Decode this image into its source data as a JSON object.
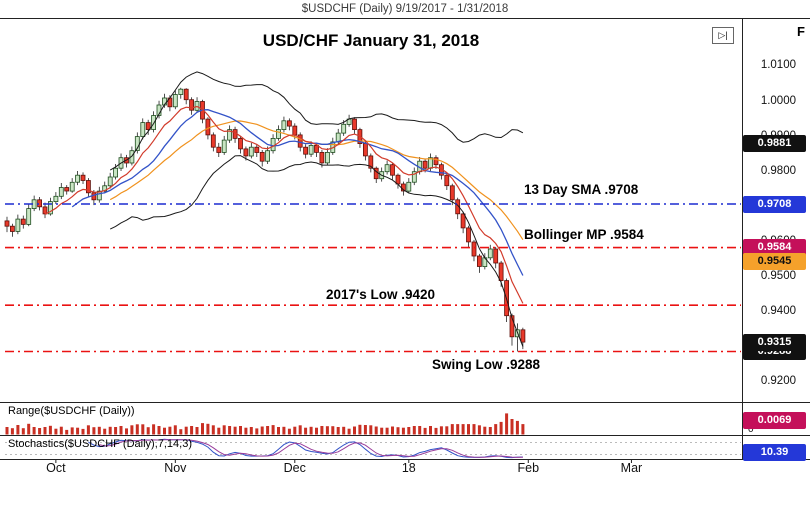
{
  "header": {
    "title": "$USDCHF (Daily) 9/19/2017 - 1/31/2018"
  },
  "toolbar": {
    "scroll_end_glyph": "▷|",
    "corner_letter": "F"
  },
  "panels": {
    "range": {
      "label": "Range($USDCHF (Daily))",
      "badge": "0.0069",
      "badge_bg": "#c4105a",
      "badge_fg": "#ffffff",
      "zero_label": "0"
    },
    "stochastics": {
      "label": "Stochastics($USDCHF (Daily),7,14,3)",
      "badge": "10.39",
      "badge_bg": "#2438d8",
      "badge_fg": "#ffffff",
      "last": 10.39
    }
  },
  "chart_data": {
    "type": "candlestick",
    "symbol": "$USDCHF",
    "timeframe": "Daily",
    "date_range": "9/19/2017 - 1/31/2018",
    "title": "USD/CHF January 31, 2018",
    "ylim": [
      0.915,
      1.0215
    ],
    "y_ticks": [
      "1.0100",
      "1.0000",
      "0.9900",
      "0.9800",
      "0.9700",
      "0.9600",
      "0.9500",
      "0.9400",
      "0.9300",
      "0.9200"
    ],
    "x_ticks": [
      {
        "label": "Oct",
        "day": 9
      },
      {
        "label": "Nov",
        "day": 31
      },
      {
        "label": "Dec",
        "day": 53
      },
      {
        "label": "18",
        "day": 74
      },
      {
        "label": "Feb",
        "day": 96
      },
      {
        "label": "Mar",
        "day": 115
      }
    ],
    "levels": [
      {
        "label": "13 Day SMA .9708",
        "value": 0.9708,
        "color": "#1c2bd0"
      },
      {
        "label": "Bollinger MP .9584",
        "value": 0.9584,
        "color": "#ea1212"
      },
      {
        "label": "2017's Low .9420",
        "value": 0.942,
        "color": "#ea1212"
      },
      {
        "label": "Swing Low .9288",
        "value": 0.9288,
        "color": "#ea1212"
      }
    ],
    "price_badges": [
      {
        "text": "0.9881",
        "value": 0.9881,
        "bg": "#111111",
        "fg": "#ffffff"
      },
      {
        "text": "0.9288",
        "value": 0.9288,
        "bg": "#111111",
        "fg": "#ffffff"
      },
      {
        "text": "0.9315",
        "value": 0.9315,
        "bg": "#111111",
        "fg": "#ffffff"
      },
      {
        "text": "0.9708",
        "value": 0.9708,
        "bg": "#2438d8",
        "fg": "#ffffff"
      },
      {
        "text": "0.9584",
        "value": 0.9584,
        "bg": "#c4105a",
        "fg": "#ffffff"
      },
      {
        "text": "0.9545",
        "value": 0.9545,
        "bg": "#f5a12b",
        "fg": "#111111"
      }
    ],
    "overlays": [
      {
        "name": "Bollinger Upper Band",
        "period": 20,
        "color": "#1a1a1a"
      },
      {
        "name": "Bollinger Lower Band",
        "period": 20,
        "color": "#1a1a1a"
      },
      {
        "name": "Bollinger Midline",
        "period": 20,
        "color": "#f0921e"
      },
      {
        "name": "13 Day SMA",
        "period": 13,
        "color": "#3353c8"
      },
      {
        "name": "8 Day EMA",
        "period": 8,
        "color": "#d23b2b"
      }
    ],
    "last_close": 0.9315,
    "candles": [
      [
        0.966,
        0.9672,
        0.9628,
        0.9645
      ],
      [
        0.9645,
        0.9652,
        0.9615,
        0.963
      ],
      [
        0.963,
        0.9678,
        0.9622,
        0.9665
      ],
      [
        0.9665,
        0.9675,
        0.9638,
        0.965
      ],
      [
        0.965,
        0.9708,
        0.9645,
        0.9695
      ],
      [
        0.9695,
        0.9732,
        0.9688,
        0.972
      ],
      [
        0.972,
        0.9728,
        0.969,
        0.97
      ],
      [
        0.97,
        0.9712,
        0.9668,
        0.968
      ],
      [
        0.968,
        0.9726,
        0.9675,
        0.9715
      ],
      [
        0.9715,
        0.9742,
        0.9708,
        0.973
      ],
      [
        0.973,
        0.9768,
        0.9722,
        0.9755
      ],
      [
        0.9755,
        0.9762,
        0.9735,
        0.9745
      ],
      [
        0.9745,
        0.9782,
        0.974,
        0.977
      ],
      [
        0.977,
        0.9802,
        0.9762,
        0.979
      ],
      [
        0.979,
        0.9798,
        0.9765,
        0.9775
      ],
      [
        0.9775,
        0.9782,
        0.9728,
        0.974
      ],
      [
        0.974,
        0.9748,
        0.9705,
        0.972
      ],
      [
        0.972,
        0.9757,
        0.9712,
        0.9745
      ],
      [
        0.9745,
        0.9772,
        0.9738,
        0.976
      ],
      [
        0.976,
        0.9797,
        0.9752,
        0.9785
      ],
      [
        0.9785,
        0.9822,
        0.9778,
        0.981
      ],
      [
        0.981,
        0.9852,
        0.9802,
        0.984
      ],
      [
        0.984,
        0.9848,
        0.9812,
        0.9825
      ],
      [
        0.9825,
        0.9872,
        0.9818,
        0.986
      ],
      [
        0.986,
        0.9912,
        0.9852,
        0.99
      ],
      [
        0.99,
        0.9952,
        0.9892,
        0.994
      ],
      [
        0.994,
        0.9948,
        0.9905,
        0.992
      ],
      [
        0.992,
        0.9972,
        0.9912,
        0.996
      ],
      [
        0.996,
        1.0002,
        0.9952,
        0.999
      ],
      [
        0.999,
        1.0022,
        0.9982,
        1.001
      ],
      [
        1.001,
        1.0018,
        0.9972,
        0.9985
      ],
      [
        0.9985,
        1.0032,
        0.9978,
        1.002
      ],
      [
        1.002,
        1.0039,
        1.0008,
        1.0035
      ],
      [
        1.0035,
        1.0038,
        0.9992,
        1.0005
      ],
      [
        1.0005,
        1.0012,
        0.9962,
        0.9975
      ],
      [
        0.9975,
        1.0012,
        0.9968,
        1.0
      ],
      [
        1.0,
        1.0005,
        0.9938,
        0.995
      ],
      [
        0.995,
        0.9955,
        0.9892,
        0.9905
      ],
      [
        0.9905,
        0.9912,
        0.9858,
        0.987
      ],
      [
        0.987,
        0.9882,
        0.9842,
        0.9855
      ],
      [
        0.9855,
        0.9902,
        0.9848,
        0.989
      ],
      [
        0.989,
        0.9932,
        0.9882,
        0.992
      ],
      [
        0.992,
        0.9928,
        0.9882,
        0.9895
      ],
      [
        0.9895,
        0.9902,
        0.9852,
        0.9865
      ],
      [
        0.9865,
        0.9872,
        0.9832,
        0.9845
      ],
      [
        0.9845,
        0.9882,
        0.9838,
        0.987
      ],
      [
        0.987,
        0.9878,
        0.9842,
        0.9855
      ],
      [
        0.9855,
        0.9862,
        0.9815,
        0.983
      ],
      [
        0.983,
        0.9872,
        0.9822,
        0.986
      ],
      [
        0.986,
        0.9907,
        0.9852,
        0.9895
      ],
      [
        0.9895,
        0.9932,
        0.9888,
        0.992
      ],
      [
        0.992,
        0.9957,
        0.9912,
        0.9945
      ],
      [
        0.9945,
        0.9952,
        0.9918,
        0.993
      ],
      [
        0.993,
        0.9938,
        0.9892,
        0.9905
      ],
      [
        0.9905,
        0.9912,
        0.9858,
        0.987
      ],
      [
        0.987,
        0.9878,
        0.9838,
        0.985
      ],
      [
        0.985,
        0.9887,
        0.9842,
        0.9875
      ],
      [
        0.9875,
        0.9882,
        0.9842,
        0.9855
      ],
      [
        0.9855,
        0.9862,
        0.9812,
        0.9825
      ],
      [
        0.9825,
        0.9867,
        0.9818,
        0.9855
      ],
      [
        0.9855,
        0.9897,
        0.9848,
        0.9885
      ],
      [
        0.9885,
        0.9922,
        0.9878,
        0.991
      ],
      [
        0.991,
        0.9947,
        0.9902,
        0.9935
      ],
      [
        0.9935,
        0.9962,
        0.9928,
        0.995
      ],
      [
        0.995,
        0.9955,
        0.9908,
        0.992
      ],
      [
        0.992,
        0.9925,
        0.9868,
        0.988
      ],
      [
        0.988,
        0.9888,
        0.9832,
        0.9845
      ],
      [
        0.9845,
        0.9852,
        0.9798,
        0.981
      ],
      [
        0.981,
        0.9815,
        0.9768,
        0.978
      ],
      [
        0.978,
        0.9812,
        0.9772,
        0.98
      ],
      [
        0.98,
        0.9832,
        0.9792,
        0.982
      ],
      [
        0.982,
        0.9825,
        0.9778,
        0.979
      ],
      [
        0.979,
        0.9795,
        0.9752,
        0.9765
      ],
      [
        0.9765,
        0.9772,
        0.9732,
        0.9745
      ],
      [
        0.9745,
        0.9782,
        0.9738,
        0.977
      ],
      [
        0.977,
        0.9812,
        0.9762,
        0.98
      ],
      [
        0.98,
        0.9842,
        0.9792,
        0.983
      ],
      [
        0.983,
        0.9837,
        0.9798,
        0.981
      ],
      [
        0.981,
        0.9852,
        0.9802,
        0.984
      ],
      [
        0.984,
        0.9847,
        0.9808,
        0.982
      ],
      [
        0.982,
        0.9826,
        0.9778,
        0.979
      ],
      [
        0.979,
        0.9796,
        0.9748,
        0.976
      ],
      [
        0.976,
        0.9766,
        0.9705,
        0.972
      ],
      [
        0.972,
        0.9726,
        0.9665,
        0.968
      ],
      [
        0.968,
        0.9686,
        0.9625,
        0.964
      ],
      [
        0.964,
        0.9646,
        0.9585,
        0.96
      ],
      [
        0.96,
        0.9606,
        0.9545,
        0.956
      ],
      [
        0.956,
        0.9566,
        0.9512,
        0.953
      ],
      [
        0.953,
        0.9568,
        0.9522,
        0.9555
      ],
      [
        0.9555,
        0.9592,
        0.9548,
        0.958
      ],
      [
        0.958,
        0.9586,
        0.9525,
        0.954
      ],
      [
        0.954,
        0.9546,
        0.9472,
        0.949
      ],
      [
        0.949,
        0.9496,
        0.9372,
        0.939
      ],
      [
        0.939,
        0.9396,
        0.9305,
        0.933
      ],
      [
        0.933,
        0.9368,
        0.9288,
        0.935
      ],
      [
        0.935,
        0.9356,
        0.9295,
        0.9315
      ]
    ]
  }
}
